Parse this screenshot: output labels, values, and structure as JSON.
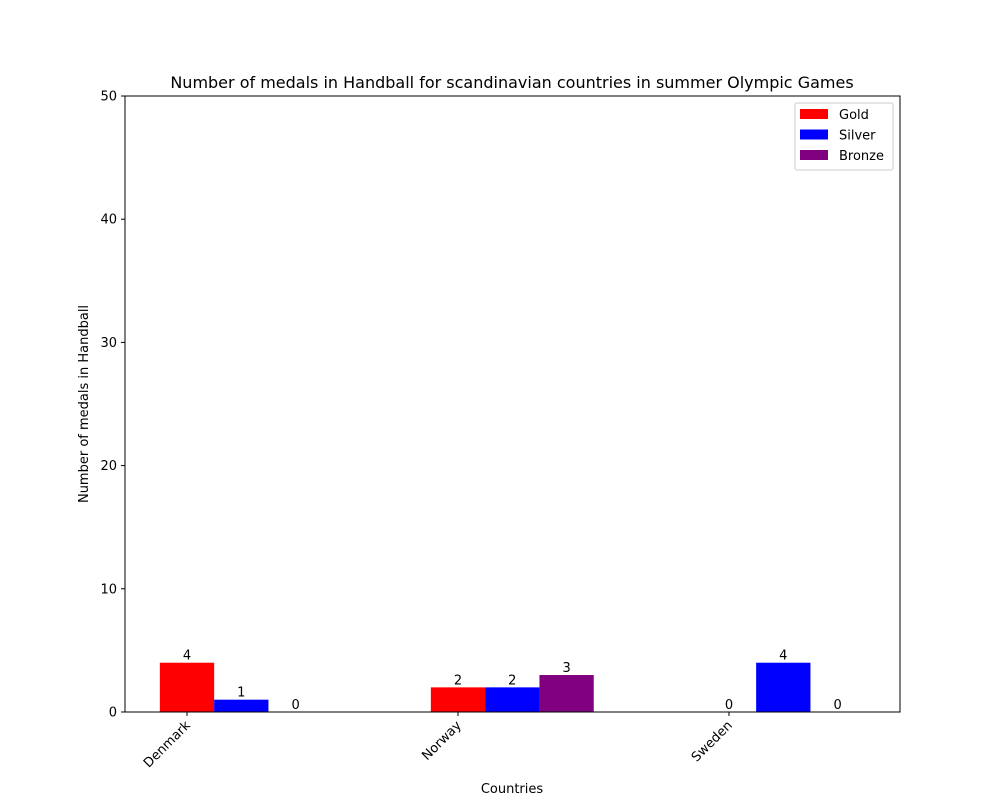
{
  "chart_data": {
    "type": "bar",
    "title": "Number of medals in Handball for scandinavian countries in summer Olympic Games",
    "xlabel": "Countries",
    "ylabel": "Number of medals in Handball",
    "categories": [
      "Denmark",
      "Norway",
      "Sweden"
    ],
    "series": [
      {
        "name": "Gold",
        "values": [
          4,
          2,
          0
        ],
        "color": "#ff0000"
      },
      {
        "name": "Silver",
        "values": [
          1,
          2,
          4
        ],
        "color": "#0000ff"
      },
      {
        "name": "Bronze",
        "values": [
          0,
          3,
          0
        ],
        "color": "#800080"
      }
    ],
    "ylim": [
      0,
      50
    ],
    "yticks": [
      0,
      10,
      20,
      30,
      40,
      50
    ],
    "grid": false,
    "legend_position": "top-right"
  }
}
